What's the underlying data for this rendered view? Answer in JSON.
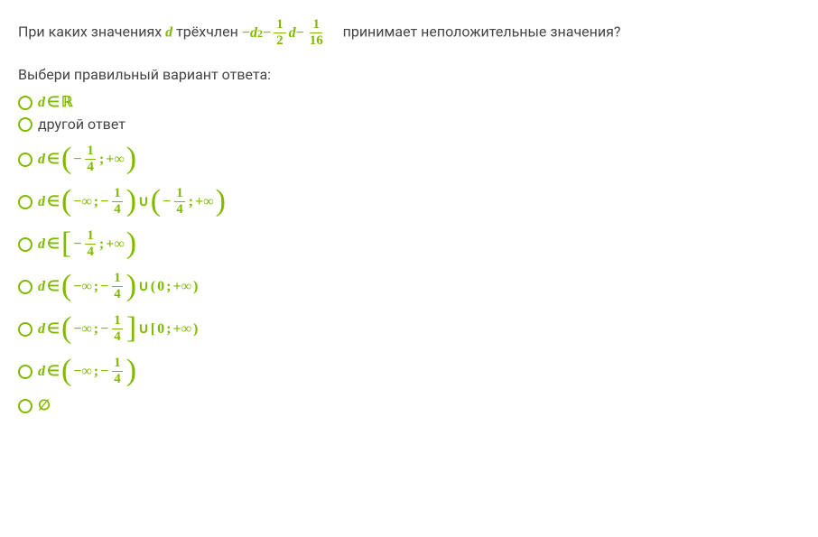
{
  "question": {
    "prefix": "При каких значениях ",
    "var": "d",
    "middle": " трёхчлен ",
    "suffix": " принимает неположительные значения?",
    "expr": {
      "neg1": "−",
      "d": "d",
      "sq": "2",
      "minus1": " − ",
      "f1_num": "1",
      "f1_den": "2",
      "d2": "d",
      "minus2": " − ",
      "f2_num": "1",
      "f2_den": "16"
    }
  },
  "prompt": "Выбери правильный вариант ответа:",
  "options": {
    "o1": {
      "d": "d",
      "in": " ∈ ",
      "r": "ℝ"
    },
    "o2": {
      "text": "другой ответ"
    },
    "o3": {
      "d": "d",
      "in": " ∈ ",
      "lp": "(",
      "neg": "−",
      "f_num": "1",
      "f_den": "4",
      "sep": "; ",
      "pinf": "+∞",
      "rp": ")"
    },
    "o4": {
      "d": "d",
      "in": " ∈ ",
      "lp": "(",
      "ninf": "−∞",
      "sep": "; ",
      "neg": "−",
      "f_num": "1",
      "f_den": "4",
      "rp": ")",
      "cup": " ∪ ",
      "lp2": "(",
      "neg2": "−",
      "f2_num": "1",
      "f2_den": "4",
      "sep2": "; ",
      "pinf": "+∞",
      "rp2": ")"
    },
    "o5": {
      "d": "d",
      "in": " ∈ ",
      "lb": "[",
      "neg": "−",
      "f_num": "1",
      "f_den": "4",
      "sep": "; ",
      "pinf": "+∞",
      "rp": ")"
    },
    "o6": {
      "d": "d",
      "in": " ∈ ",
      "lp": "(",
      "ninf": "−∞",
      "sep": "; ",
      "neg": "−",
      "f_num": "1",
      "f_den": "4",
      "rp": ")",
      "cup": " ∪ ",
      "lp2": "(",
      "zero": "0",
      "sep2": "; ",
      "pinf": "+∞",
      "rp2": ")"
    },
    "o7": {
      "d": "d",
      "in": " ∈ ",
      "lp": "(",
      "ninf": "−∞",
      "sep": "; ",
      "neg": "−",
      "f_num": "1",
      "f_den": "4",
      "rb": "]",
      "cup": " ∪ ",
      "lb2": "[",
      "zero": "0",
      "sep2": "; ",
      "pinf": "+∞",
      "rp2": ")"
    },
    "o8": {
      "d": "d",
      "in": " ∈ ",
      "lp": "(",
      "ninf": "−∞",
      "sep": "; ",
      "neg": "−",
      "f_num": "1",
      "f_den": "4",
      "rp": ")"
    },
    "o9": {
      "empty": "∅"
    }
  },
  "colors": {
    "accent": "#7fba00",
    "text": "#444444",
    "background": "#ffffff"
  }
}
